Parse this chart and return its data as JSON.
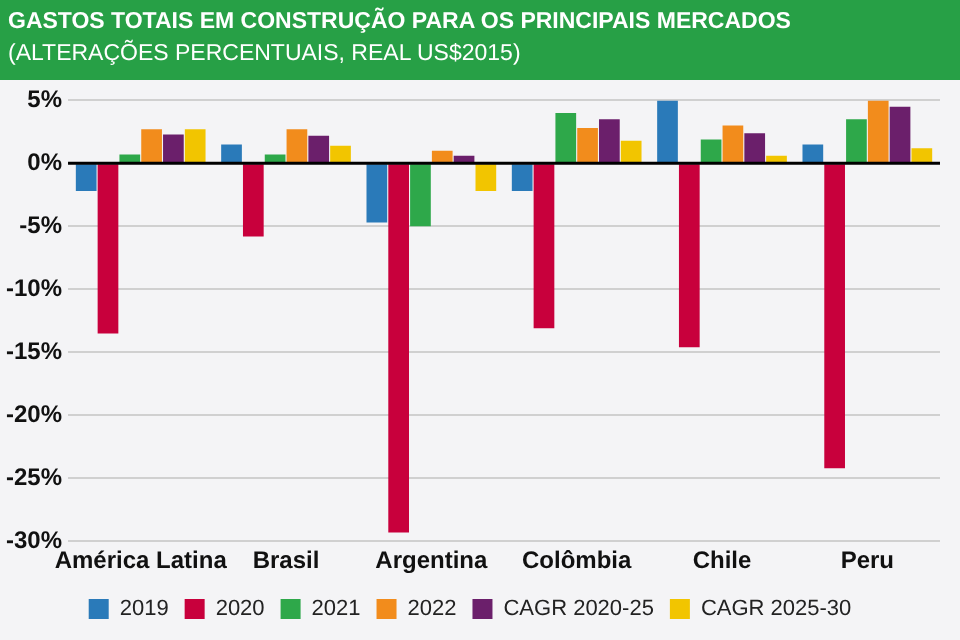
{
  "chart_data": {
    "type": "bar",
    "title": "GASTOS TOTAIS EM CONSTRUÇÃO PARA OS PRINCIPAIS MERCADOS",
    "subtitle": "(ALTERAÇÕES PERCENTUAIS, REAL US$2015)",
    "categories": [
      "América Latina",
      "Brasil",
      "Argentina",
      "Colômbia",
      "Chile",
      "Peru"
    ],
    "series": [
      {
        "name": "2019",
        "color": "#2a7ab9",
        "values": [
          -2.2,
          1.5,
          -4.7,
          -2.2,
          5.0,
          1.5
        ]
      },
      {
        "name": "2020",
        "color": "#c8003c",
        "values": [
          -13.5,
          -5.8,
          -29.3,
          -13.1,
          -14.6,
          -24.2
        ]
      },
      {
        "name": "2021",
        "color": "#2ea84a",
        "values": [
          0.7,
          0.7,
          -5.0,
          4.0,
          1.9,
          3.5
        ]
      },
      {
        "name": "2022",
        "color": "#f28c1c",
        "values": [
          2.7,
          2.7,
          1.0,
          2.8,
          3.0,
          5.0
        ]
      },
      {
        "name": "CAGR 2020-25",
        "color": "#6b1f6b",
        "values": [
          2.3,
          2.2,
          0.6,
          3.5,
          2.4,
          4.5
        ]
      },
      {
        "name": "CAGR 2025-30",
        "color": "#f2c500",
        "values": [
          2.7,
          1.4,
          -2.2,
          1.8,
          0.6,
          1.2
        ]
      }
    ],
    "ylim": [
      -30,
      5
    ],
    "yticks": [
      {
        "value": -30,
        "label": "-30%"
      },
      {
        "value": -25,
        "label": "-25%"
      },
      {
        "value": -20,
        "label": "-20%"
      },
      {
        "value": -15,
        "label": "-15%"
      },
      {
        "value": -10,
        "label": "-10%"
      },
      {
        "value": -5,
        "label": "-5%"
      },
      {
        "value": 0,
        "label": "0%"
      },
      {
        "value": 5,
        "label": "5%"
      }
    ],
    "grid": "y",
    "legend": "bottom"
  }
}
